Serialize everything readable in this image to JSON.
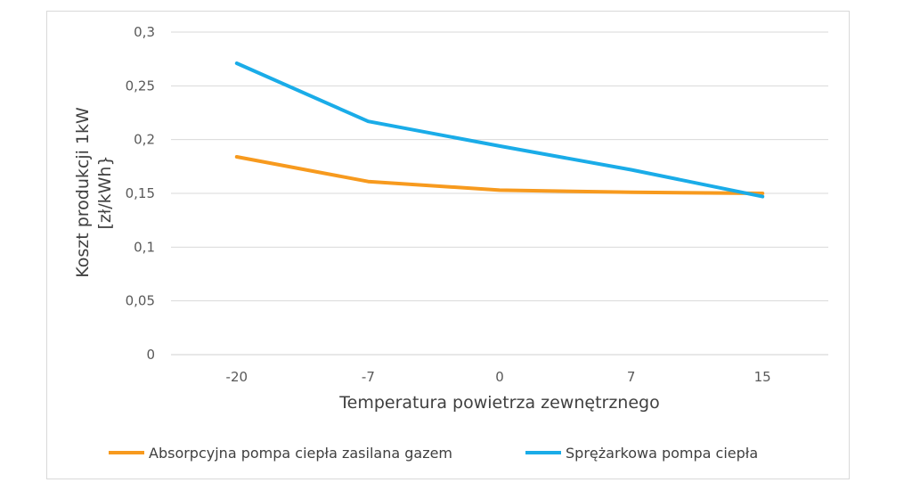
{
  "chart_data": {
    "type": "line",
    "title": "",
    "xlabel": "Temperatura powietrza zewnętrznego",
    "ylabel_lines": [
      "Koszt produkcji 1kW",
      "[zł/kWh}"
    ],
    "categories": [
      "-20",
      "-7",
      "0",
      "7",
      "15"
    ],
    "ylim": [
      0,
      0.3
    ],
    "yticks": [
      0,
      0.05,
      0.1,
      0.15,
      0.2,
      0.25,
      0.3
    ],
    "ytick_labels": [
      "0",
      "0,05",
      "0,1",
      "0,15",
      "0,2",
      "0,25",
      "0,3"
    ],
    "grid": true,
    "legend_position": "bottom",
    "series": [
      {
        "name": "Absorpcyjna pompa ciepła zasilana gazem",
        "color": "#f79a1e",
        "values": [
          0.184,
          0.161,
          0.153,
          0.151,
          0.15
        ]
      },
      {
        "name": "Sprężarkowa pompa ciepła",
        "color": "#1aace8",
        "values": [
          0.271,
          0.217,
          0.194,
          0.172,
          0.147
        ]
      }
    ]
  }
}
